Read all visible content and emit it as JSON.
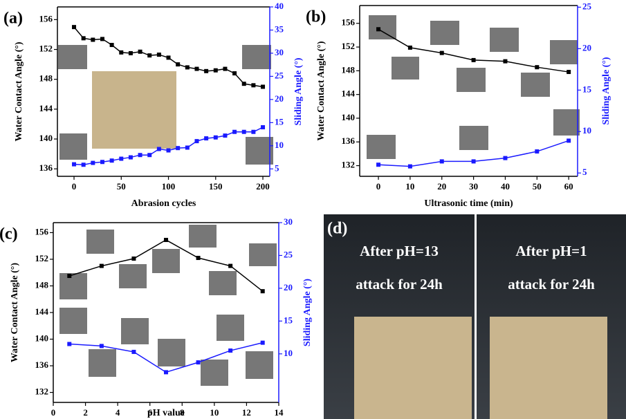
{
  "chart_data": [
    {
      "type": "line",
      "panel_label": "(a)",
      "xlabel": "Abrasion cycles",
      "ylabel": "Water Contact Angle (°)",
      "y2label": "Sliding Angle (°)",
      "x": [
        0,
        10,
        20,
        30,
        40,
        50,
        60,
        70,
        80,
        90,
        100,
        110,
        120,
        130,
        140,
        150,
        160,
        170,
        180,
        190,
        200
      ],
      "series": [
        {
          "color": "#000000",
          "values": [
            155.0,
            153.5,
            153.3,
            153.4,
            152.6,
            151.6,
            151.5,
            151.7,
            151.2,
            151.3,
            150.9,
            150.0,
            149.6,
            149.4,
            149.1,
            149.2,
            149.4,
            148.8,
            147.4,
            147.2,
            147.0
          ]
        },
        {
          "color": "#1a1aff",
          "axis": "y2",
          "values": [
            6.0,
            5.9,
            6.3,
            6.5,
            6.8,
            7.2,
            7.5,
            8.0,
            8.0,
            9.3,
            9.0,
            9.5,
            9.6,
            11.0,
            11.6,
            11.8,
            12.2,
            13.0,
            13.0,
            13.0,
            14.0
          ]
        }
      ],
      "xlim": [
        -17.6,
        207.3
      ],
      "xticks": [
        0,
        50,
        100,
        150,
        200
      ],
      "ylim": [
        135,
        157.7
      ],
      "yticks": [
        136,
        140,
        144,
        148,
        152,
        156
      ],
      "y2lim": [
        3.4,
        40
      ],
      "y2ticks": [
        5,
        10,
        15,
        20,
        25,
        30,
        35,
        40
      ]
    },
    {
      "type": "line",
      "panel_label": "(b)",
      "xlabel": "Ultrasonic time (min)",
      "ylabel": "Water Contact Angle (°)",
      "y2label": "Sliding Angle (°)",
      "x": [
        0,
        10,
        20,
        30,
        40,
        50,
        60
      ],
      "series": [
        {
          "color": "#000000",
          "values": [
            155.0,
            151.9,
            151.0,
            149.8,
            149.6,
            148.6,
            147.8
          ]
        },
        {
          "color": "#1a1aff",
          "axis": "y2",
          "values": [
            6.0,
            5.8,
            6.4,
            6.4,
            6.8,
            7.6,
            8.9
          ]
        }
      ],
      "xlim": [
        -5.9,
        62.8
      ],
      "xticks": [
        0,
        10,
        20,
        30,
        40,
        50,
        60
      ],
      "ylim": [
        130.2,
        159
      ],
      "yticks": [
        132,
        136,
        140,
        144,
        148,
        152,
        156
      ],
      "y2lim": [
        4.6,
        25.2
      ],
      "y2ticks": [
        5,
        10,
        15,
        20,
        25
      ]
    },
    {
      "type": "line",
      "panel_label": "(c)",
      "xlabel": "pH value",
      "ylabel": "Water Contact Angle (°)",
      "y2label": "Sliding Angle (°)",
      "x": [
        1,
        3,
        5,
        7,
        9,
        11,
        13
      ],
      "series": [
        {
          "color": "#000000",
          "values": [
            149.5,
            151.0,
            152.1,
            154.9,
            152.2,
            151.0,
            147.2
          ]
        },
        {
          "color": "#1a1aff",
          "axis": "y2",
          "values": [
            11.5,
            11.2,
            10.3,
            7.2,
            8.7,
            10.5,
            11.7
          ]
        }
      ],
      "xlim": [
        0,
        14
      ],
      "xticks": [
        0,
        2,
        4,
        6,
        8,
        10,
        12,
        14
      ],
      "ylim": [
        130.5,
        157.5
      ],
      "yticks": [
        132,
        136,
        140,
        144,
        148,
        152,
        156
      ],
      "y2lim": [
        2.6,
        30
      ],
      "y2ticks": [
        10,
        15,
        20,
        25,
        30
      ]
    }
  ],
  "photo_panel": {
    "label": "(d)",
    "photos": [
      {
        "lines": [
          "After pH=13",
          "attack for 24h"
        ]
      },
      {
        "lines": [
          "After pH=1",
          "attack for 24h"
        ]
      }
    ]
  }
}
